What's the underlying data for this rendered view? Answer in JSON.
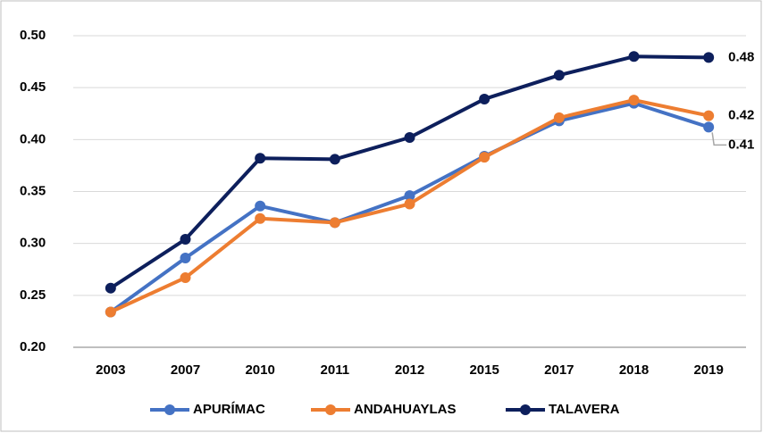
{
  "chart_data": {
    "type": "line",
    "categories": [
      "2003",
      "2007",
      "2010",
      "2011",
      "2012",
      "2015",
      "2017",
      "2018",
      "2019"
    ],
    "series": [
      {
        "name": "APURÍMAC",
        "color": "#4472c4",
        "values": [
          0.234,
          0.286,
          0.336,
          0.32,
          0.346,
          0.384,
          0.418,
          0.435,
          0.412
        ],
        "value_labels": [
          null,
          null,
          null,
          null,
          null,
          null,
          null,
          null,
          "0.41"
        ]
      },
      {
        "name": "ANDAHUAYLAS",
        "color": "#ed7d31",
        "values": [
          0.234,
          0.267,
          0.324,
          0.32,
          0.338,
          0.383,
          0.421,
          0.438,
          0.423
        ],
        "value_labels": [
          null,
          null,
          null,
          null,
          null,
          null,
          null,
          null,
          "0.42"
        ]
      },
      {
        "name": "TALAVERA",
        "color": "#0d1f5c",
        "values": [
          0.257,
          0.304,
          0.382,
          0.381,
          0.402,
          0.439,
          0.462,
          0.48,
          0.479
        ],
        "value_labels": [
          null,
          null,
          null,
          null,
          null,
          null,
          null,
          null,
          "0.48"
        ]
      }
    ],
    "ylim": [
      0.2,
      0.5
    ],
    "yticks": [
      {
        "value": 0.2,
        "label": "0.20"
      },
      {
        "value": 0.25,
        "label": "0.25"
      },
      {
        "value": 0.3,
        "label": "0.30"
      },
      {
        "value": 0.35,
        "label": "0.35"
      },
      {
        "value": 0.4,
        "label": "0.40"
      },
      {
        "value": 0.45,
        "label": "0.45"
      },
      {
        "value": 0.5,
        "label": "0.50"
      }
    ],
    "grid": true
  }
}
